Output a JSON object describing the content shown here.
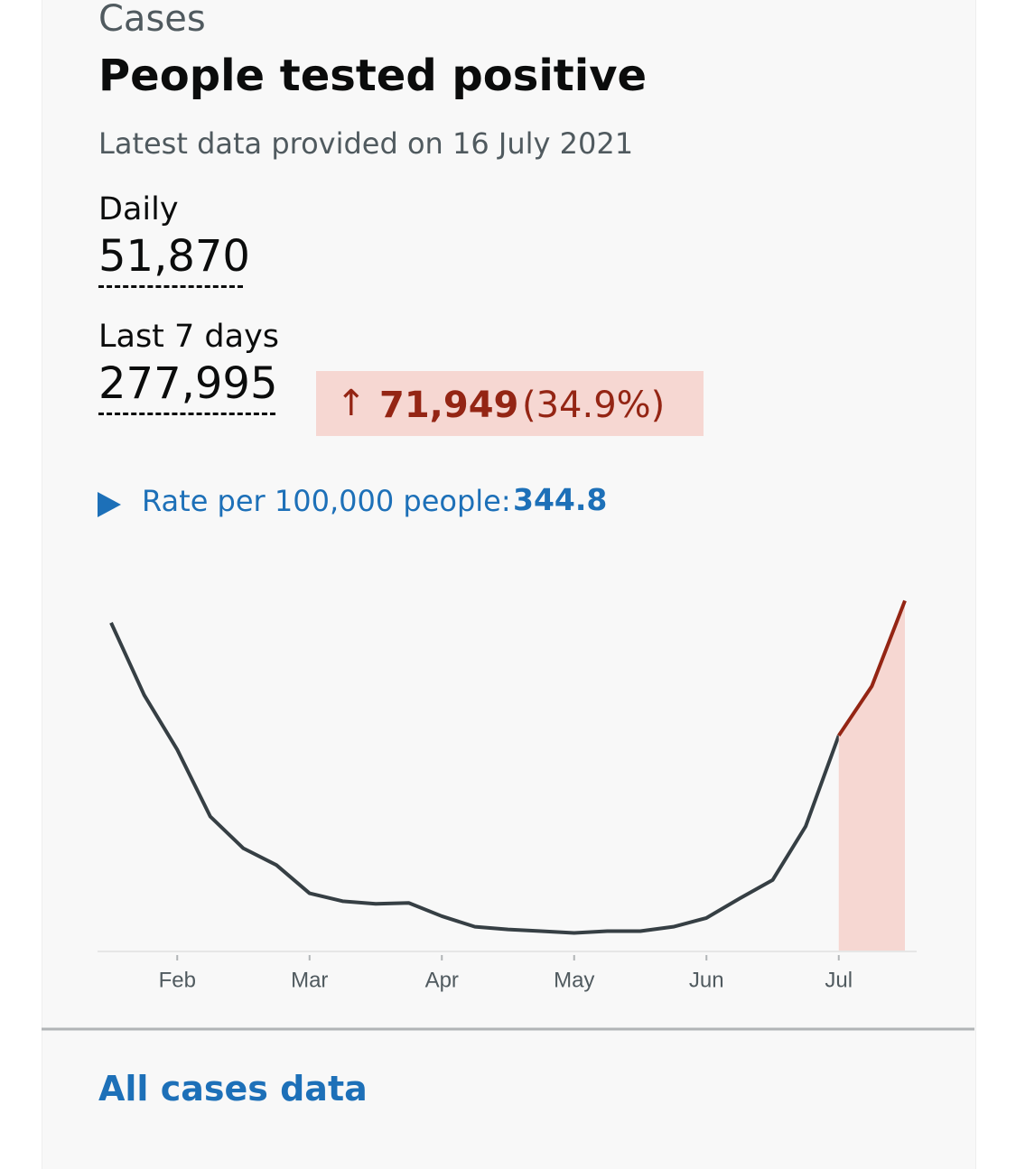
{
  "header": {
    "caption": "Cases",
    "title": "People tested positive",
    "subtitle": "Latest data provided on 16 July 2021"
  },
  "metrics": {
    "daily_label": "Daily",
    "daily_value": "51,870",
    "week_label": "Last 7 days",
    "week_value": "277,995",
    "change_value": "71,949",
    "change_percent": "(34.9%)",
    "rate_label": "Rate per 100,000 people:",
    "rate_value": "344.8"
  },
  "chart_data": {
    "type": "line",
    "categories": [
      null,
      null,
      "Feb",
      null,
      null,
      null,
      "Mar",
      null,
      null,
      null,
      "Apr",
      null,
      null,
      null,
      "May",
      null,
      null,
      null,
      "Jun",
      null,
      null,
      null,
      "Jul",
      null,
      null
    ],
    "series": [
      {
        "color": "#363f44",
        "values": [
          37200,
          29000,
          22800,
          15200,
          11600,
          9700,
          6500,
          5600,
          5300,
          5400,
          3900,
          2700,
          2400,
          2200,
          2000,
          2200,
          2200,
          2700,
          3700,
          5900,
          8000,
          14100,
          24400,
          null,
          null
        ]
      },
      {
        "color": "#942514",
        "fill": "#f6d7d2",
        "values": [
          null,
          null,
          null,
          null,
          null,
          null,
          null,
          null,
          null,
          null,
          null,
          null,
          null,
          null,
          null,
          null,
          null,
          null,
          null,
          null,
          null,
          null,
          24400,
          30000,
          39700
        ]
      }
    ],
    "ylim": [
      0,
      42000
    ]
  },
  "footer": {
    "link": "All cases data"
  }
}
